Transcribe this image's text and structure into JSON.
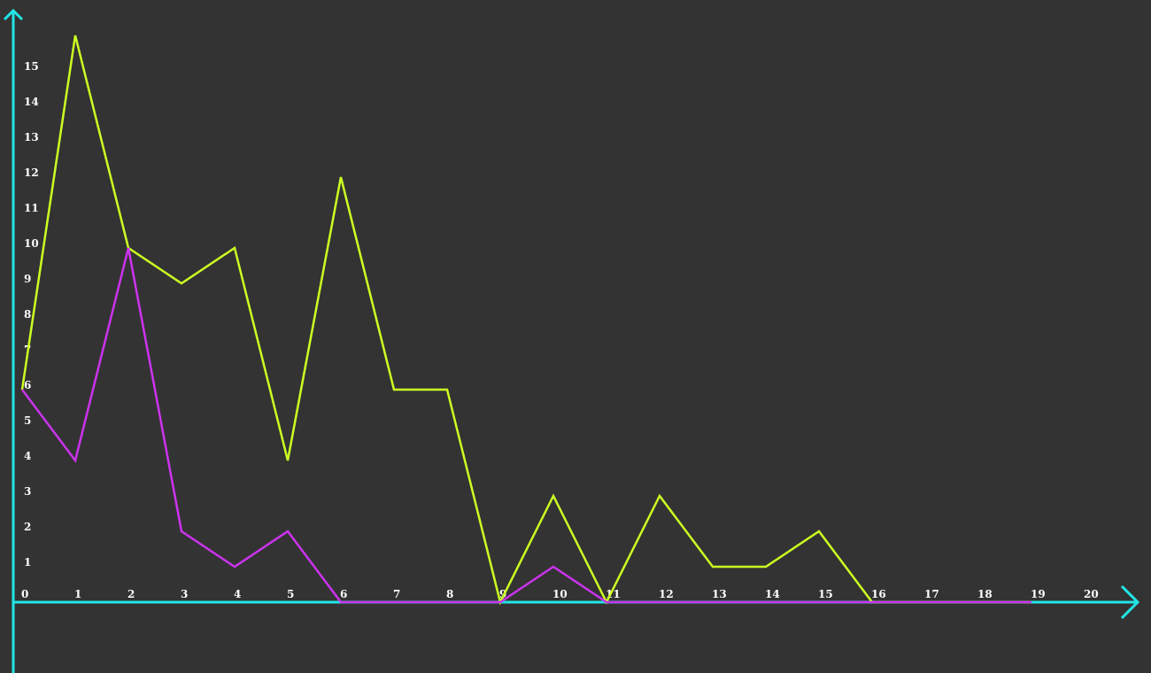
{
  "chart_data": {
    "type": "line",
    "title": "",
    "xlabel": "",
    "ylabel": "",
    "x": [
      0,
      1,
      2,
      3,
      4,
      5,
      6,
      7,
      8,
      9,
      10,
      11,
      12,
      13,
      14,
      15,
      16,
      17,
      18,
      19
    ],
    "x_ticks": [
      "0",
      "1",
      "2",
      "3",
      "4",
      "5",
      "6",
      "7",
      "8",
      "9",
      "10",
      "11",
      "12",
      "13",
      "14",
      "15",
      "16",
      "17",
      "18",
      "19",
      "20"
    ],
    "y_ticks": [
      "1",
      "2",
      "3",
      "4",
      "5",
      "6",
      "7",
      "8",
      "9",
      "10",
      "11",
      "12",
      "13",
      "14",
      "15"
    ],
    "xlim": [
      0,
      20
    ],
    "ylim": [
      0,
      16
    ],
    "grid": false,
    "legend": "none",
    "colors": {
      "background": "#333333",
      "axis": "#22e5e5",
      "text": "#ffffff"
    },
    "series": [
      {
        "color": "#ccff22",
        "values": [
          6,
          16,
          10,
          9,
          10,
          4,
          12,
          6,
          6,
          0,
          3,
          0,
          3,
          1,
          1,
          2,
          0,
          0,
          0,
          0
        ]
      },
      {
        "color": "#cc33ee",
        "values": [
          6,
          4,
          10,
          2,
          1,
          2,
          0,
          0,
          0,
          0,
          1,
          0,
          0,
          0,
          0,
          0,
          0,
          0,
          0,
          0
        ]
      }
    ]
  }
}
